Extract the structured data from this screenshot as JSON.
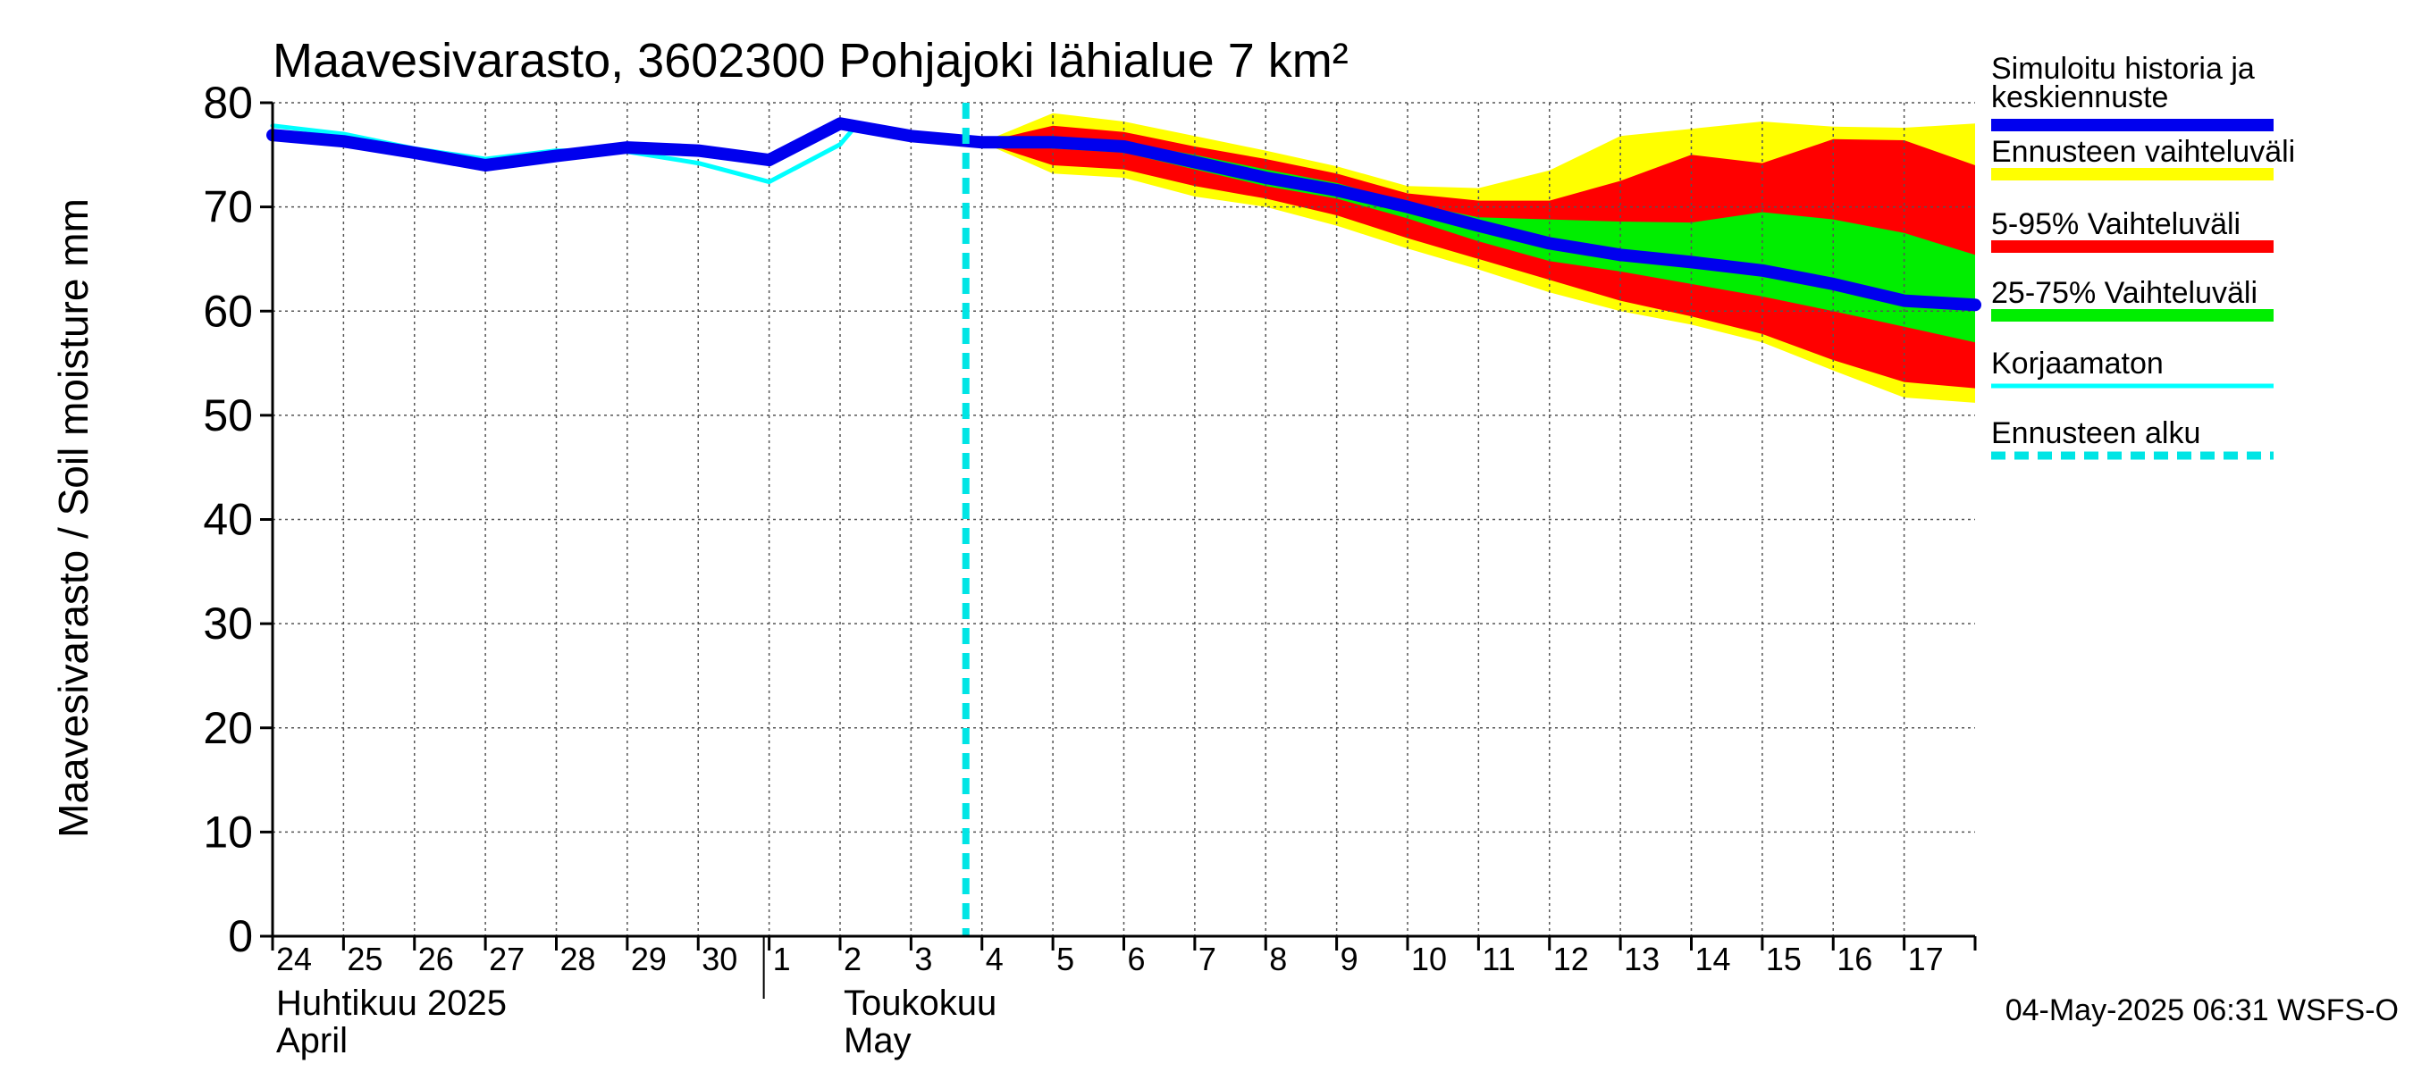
{
  "chart_data": {
    "type": "area",
    "title": "Maavesivarasto, 3602300 Pohjajoki lähialue 7 km²",
    "ylabel": "Maavesivarasto / Soil moisture   mm",
    "ylim": [
      0,
      80
    ],
    "yticks": [
      0,
      10,
      20,
      30,
      40,
      50,
      60,
      70,
      80
    ],
    "grid": true,
    "day_labels": [
      {
        "day": 0,
        "label": "24"
      },
      {
        "day": 1,
        "label": "25"
      },
      {
        "day": 2,
        "label": "26"
      },
      {
        "day": 3,
        "label": "27"
      },
      {
        "day": 4,
        "label": "28"
      },
      {
        "day": 5,
        "label": "29"
      },
      {
        "day": 6,
        "label": "30"
      },
      {
        "day": 7,
        "label": "1"
      },
      {
        "day": 8,
        "label": "2"
      },
      {
        "day": 9,
        "label": "3"
      },
      {
        "day": 10,
        "label": "4"
      },
      {
        "day": 11,
        "label": "5"
      },
      {
        "day": 12,
        "label": "6"
      },
      {
        "day": 13,
        "label": "7"
      },
      {
        "day": 14,
        "label": "8"
      },
      {
        "day": 15,
        "label": "9"
      },
      {
        "day": 16,
        "label": "10"
      },
      {
        "day": 17,
        "label": "11"
      },
      {
        "day": 18,
        "label": "12"
      },
      {
        "day": 19,
        "label": "13"
      },
      {
        "day": 20,
        "label": "14"
      },
      {
        "day": 21,
        "label": "15"
      },
      {
        "day": 22,
        "label": "16"
      },
      {
        "day": 23,
        "label": "17"
      }
    ],
    "x_domain": [
      0,
      24
    ],
    "month_labels": [
      {
        "day": 0,
        "line1": "Huhtikuu  2025",
        "line2": "April"
      },
      {
        "day": 8,
        "line1": "Toukokuu",
        "line2": "May"
      }
    ],
    "month_boundary_day": 7,
    "forecast_start_day": 10,
    "legend": [
      {
        "label": "Simuloitu historia ja keskiennuste",
        "color": "#0000ee",
        "style": "thick"
      },
      {
        "label": "Ennusteen vaihteluväli",
        "color": "#ffff00",
        "style": "thick"
      },
      {
        "label": "5-95% Vaihteluväli",
        "color": "#ff0000",
        "style": "thick"
      },
      {
        "label": "25-75% Vaihteluväli",
        "color": "#00ee00",
        "style": "thick"
      },
      {
        "label": "Korjaamaton",
        "color": "#00ffff",
        "style": "thin"
      },
      {
        "label": "Ennusteen alku",
        "color": "#00e5e5",
        "style": "dashed"
      }
    ],
    "bands": {
      "x": [
        10,
        11,
        12,
        13,
        14,
        15,
        16,
        17,
        18,
        19,
        20,
        21,
        22,
        23,
        24
      ],
      "yellow_upper": [
        76.2,
        79.0,
        78.2,
        76.8,
        75.4,
        73.9,
        72.0,
        71.8,
        73.5,
        76.8,
        77.5,
        78.2,
        77.7,
        77.6,
        78.0
      ],
      "red_upper": [
        76.2,
        77.8,
        77.2,
        75.8,
        74.6,
        73.2,
        71.3,
        70.6,
        70.6,
        72.5,
        75.0,
        74.2,
        76.5,
        76.4,
        74.0
      ],
      "green_upper": [
        76.2,
        76.8,
        76.2,
        75.0,
        73.6,
        72.3,
        70.4,
        69.0,
        68.8,
        68.6,
        68.5,
        69.5,
        68.8,
        67.5,
        65.4
      ],
      "green_lower": [
        76.2,
        75.6,
        75.2,
        73.6,
        72.0,
        70.8,
        68.9,
        66.7,
        64.8,
        63.8,
        62.6,
        61.4,
        60.0,
        58.5,
        57.0
      ],
      "red_lower": [
        76.2,
        74.0,
        73.6,
        72.0,
        70.8,
        69.2,
        67.0,
        65.0,
        63.0,
        61.0,
        59.5,
        57.8,
        55.3,
        53.2,
        52.6
      ],
      "yellow_lower": [
        76.2,
        73.2,
        72.8,
        71.0,
        70.0,
        68.2,
        66.0,
        64.0,
        61.8,
        60.0,
        58.7,
        57.0,
        54.3,
        51.7,
        51.2
      ]
    },
    "series": [
      {
        "name": "Simuloitu historia ja keskiennuste",
        "color": "#0000ee",
        "x": [
          0,
          1,
          2,
          3,
          4,
          5,
          6,
          7,
          8,
          9,
          10,
          11,
          12,
          13,
          14,
          15,
          16,
          17,
          18,
          19,
          20,
          21,
          22,
          23,
          24
        ],
        "y": [
          76.9,
          76.3,
          75.2,
          74.0,
          74.9,
          75.7,
          75.4,
          74.5,
          78.0,
          76.8,
          76.2,
          76.2,
          75.8,
          74.3,
          72.8,
          71.6,
          70.0,
          68.2,
          66.5,
          65.4,
          64.7,
          63.9,
          62.6,
          61.0,
          60.6
        ]
      },
      {
        "name": "Korjaamaton",
        "color": "#00ffff",
        "x": [
          0,
          1,
          2,
          3,
          4,
          5,
          6,
          7,
          8,
          8.2
        ],
        "y": [
          77.8,
          77.0,
          75.6,
          74.6,
          75.4,
          75.3,
          74.2,
          72.4,
          76.0,
          77.6
        ]
      }
    ],
    "timestamp": "04-May-2025 06:31 WSFS-O"
  }
}
